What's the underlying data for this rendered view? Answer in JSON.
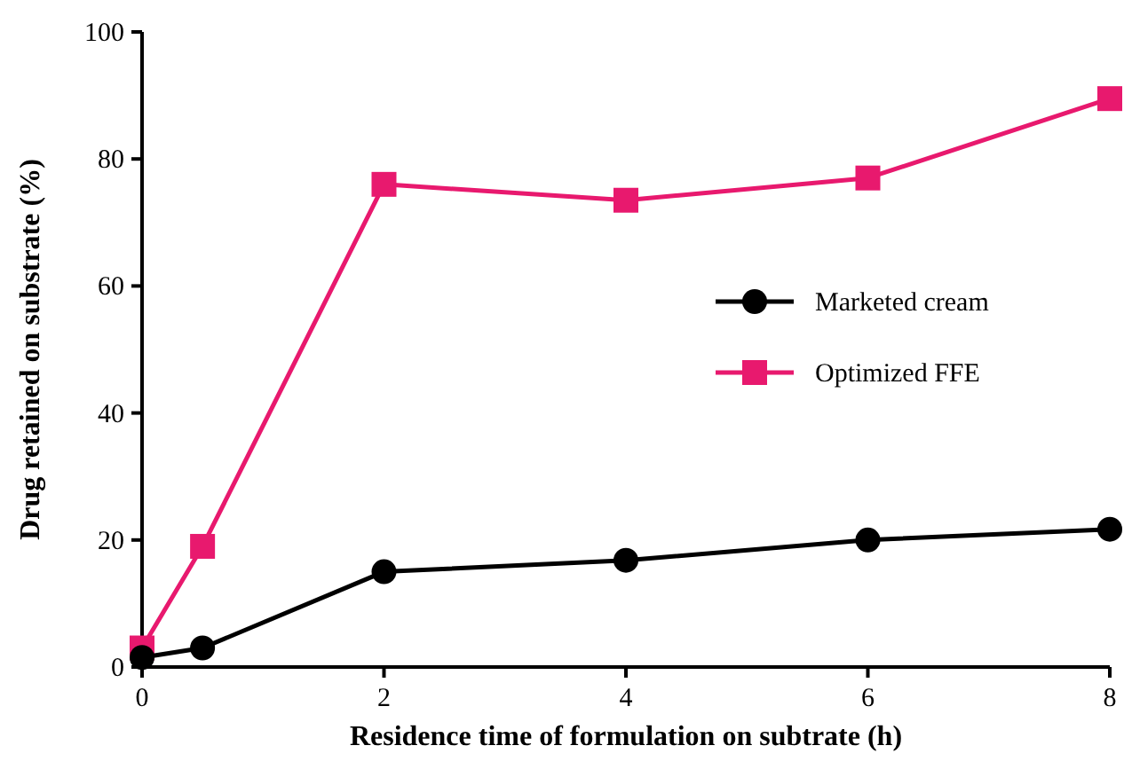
{
  "chart_data": {
    "type": "line",
    "xlabel": "Residence time of formulation on subtrate (h)",
    "ylabel": "Drug retained on substrate (%)",
    "x": [
      0,
      0.5,
      2,
      4,
      6,
      8
    ],
    "series": [
      {
        "name": "Marketed cream",
        "color": "#000000",
        "marker": "circle",
        "values": [
          1.5,
          3,
          15,
          16.8,
          20,
          21.7
        ]
      },
      {
        "name": "Optimized FFE",
        "color": "#e8196e",
        "marker": "square",
        "values": [
          3,
          19,
          76,
          73.5,
          77,
          89.5
        ]
      }
    ],
    "xlim": [
      0,
      8
    ],
    "xticks": [
      0,
      2,
      4,
      6,
      8
    ],
    "ylim": [
      0,
      100
    ],
    "yticks": [
      0,
      20,
      40,
      60,
      80,
      100
    ],
    "legend": "right",
    "grid": false,
    "line_style": "solid"
  }
}
